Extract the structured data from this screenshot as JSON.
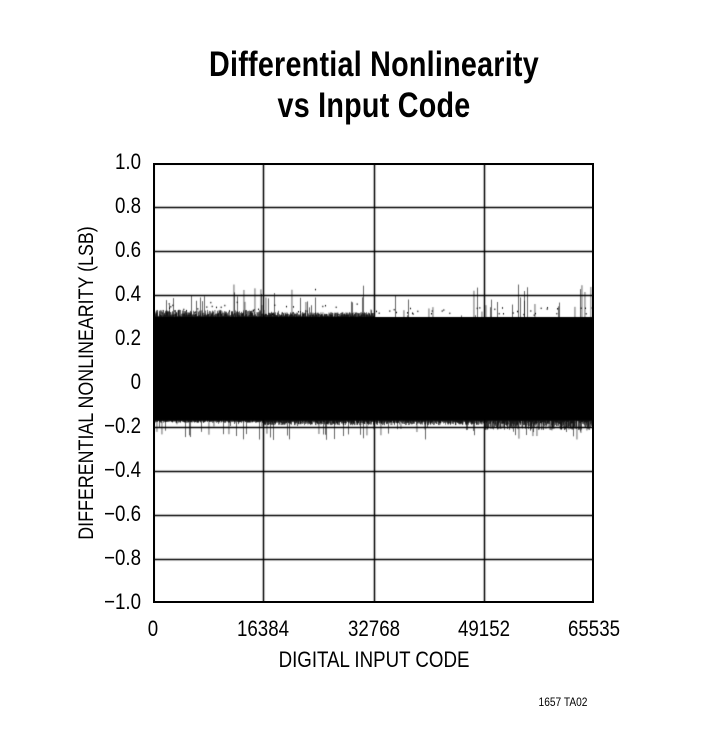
{
  "figure": {
    "title_line1": "Differential Nonlinearity",
    "title_line2": "vs Input Code",
    "figure_code": "1657 TA02"
  },
  "chart_data": {
    "type": "line",
    "title": "Differential Nonlinearity vs Input Code",
    "xlabel": "DIGITAL INPUT CODE",
    "ylabel": "DIFFERENTIAL NONLINEARITY (LSB)",
    "xlim": [
      0,
      65535
    ],
    "ylim": [
      -1.0,
      1.0
    ],
    "x_ticks": [
      0,
      16384,
      32768,
      49152,
      65535
    ],
    "x_tick_labels": [
      "0",
      "16384",
      "32768",
      "49152",
      "65535"
    ],
    "y_ticks": [
      1.0,
      0.8,
      0.6,
      0.4,
      0.2,
      0,
      -0.2,
      -0.4,
      -0.6,
      -0.8,
      -1.0
    ],
    "y_tick_labels": [
      "1.0",
      "0.8",
      "0.6",
      "0.4",
      "0.2",
      "0",
      "−0.2",
      "−0.4",
      "−0.6",
      "−0.8",
      "−1.0"
    ],
    "grid": true,
    "legend": null,
    "series": [
      {
        "name": "DNL",
        "color": "#000000",
        "description": "Dense per-code DNL noise band across all 65536 codes",
        "solid_band": [
          -0.17,
          0.3
        ],
        "typical_max": 0.38,
        "typical_min": -0.2,
        "peak_max": 0.45,
        "peak_min": -0.26,
        "band_segments": [
          {
            "x_range": [
              0,
              16384
            ],
            "upper": 0.33,
            "lower": -0.18
          },
          {
            "x_range": [
              16384,
              32768
            ],
            "upper": 0.32,
            "lower": -0.19
          },
          {
            "x_range": [
              32768,
              49152
            ],
            "upper": 0.3,
            "lower": -0.19
          },
          {
            "x_range": [
              49152,
              65535
            ],
            "upper": 0.3,
            "lower": -0.21
          }
        ]
      }
    ]
  }
}
